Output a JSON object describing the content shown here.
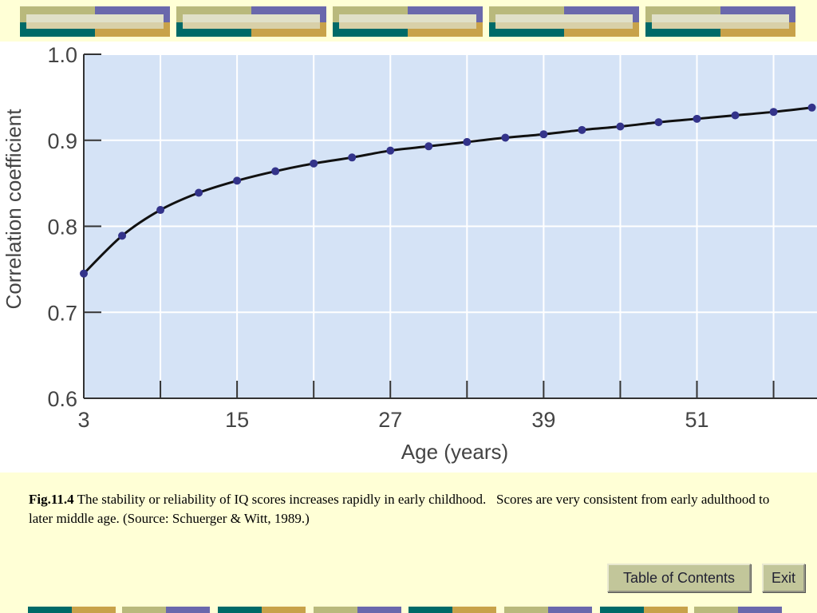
{
  "chart_data": {
    "type": "line",
    "xlabel": "Age (years)",
    "ylabel": "Correlation coefficient",
    "x": [
      3,
      6,
      9,
      12,
      15,
      18,
      21,
      24,
      27,
      30,
      33,
      36,
      39,
      42,
      45,
      48,
      51,
      54,
      57,
      60
    ],
    "series": [
      {
        "color": "#33338a",
        "line_color": "#111111",
        "values": [
          0.745,
          0.789,
          0.819,
          0.839,
          0.853,
          0.864,
          0.873,
          0.88,
          0.888,
          0.893,
          0.898,
          0.903,
          0.907,
          0.912,
          0.916,
          0.921,
          0.925,
          0.929,
          0.933,
          0.938
        ]
      }
    ],
    "xlim": [
      3,
      60.4
    ],
    "ylim": [
      0.6,
      1.0
    ],
    "xticks": [
      3,
      15,
      27,
      39,
      51
    ],
    "xminor_ticks": [
      9,
      21,
      33,
      45,
      57
    ],
    "yticks": [
      0.6,
      0.7,
      0.8,
      0.9,
      {
        "value": 1,
        "label": "1.0"
      }
    ],
    "xgrid": [
      9,
      15,
      21,
      27,
      33,
      39,
      45,
      51,
      57
    ],
    "grid": true,
    "background": "#d5e3f6"
  },
  "caption": {
    "label": "Fig.11.4",
    "text": "The stability or reliability of IQ scores increases rapidly in early childhood.   Scores are very consistent from early adulthood to later middle age. (Source: Schuerger & Witt, 1989.)"
  },
  "buttons": [
    "Table of Contents",
    "Exit"
  ]
}
